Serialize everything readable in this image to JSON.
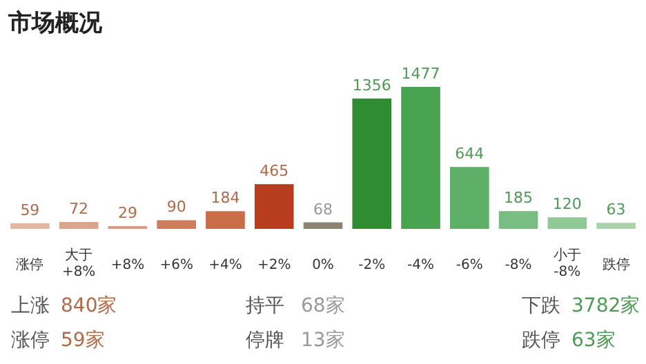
{
  "chart_data": {
    "type": "bar",
    "title": "市场概况",
    "categories": [
      "涨停",
      "大于+8%",
      "+8%",
      "+6%",
      "+4%",
      "+2%",
      "0%",
      "-2%",
      "-4%",
      "-6%",
      "-8%",
      "小于-8%",
      "跌停"
    ],
    "values": [
      59,
      72,
      29,
      90,
      184,
      465,
      68,
      1356,
      1477,
      644,
      185,
      120,
      63
    ],
    "colors": [
      "#e2b5a2",
      "#dca48c",
      "#d69c84",
      "#cd7d5d",
      "#c96d49",
      "#b83d1e",
      "#8a8372",
      "#2f8c33",
      "#48a450",
      "#5eb068",
      "#7abd82",
      "#90c896",
      "#abd3ab"
    ],
    "data_labels": true,
    "annotations": [
      "上涨",
      "840家",
      "涨停",
      "59家",
      "持平",
      "68家",
      "停牌",
      "13家",
      "下跌",
      "3782家",
      "跌停",
      "63家"
    ]
  }
}
